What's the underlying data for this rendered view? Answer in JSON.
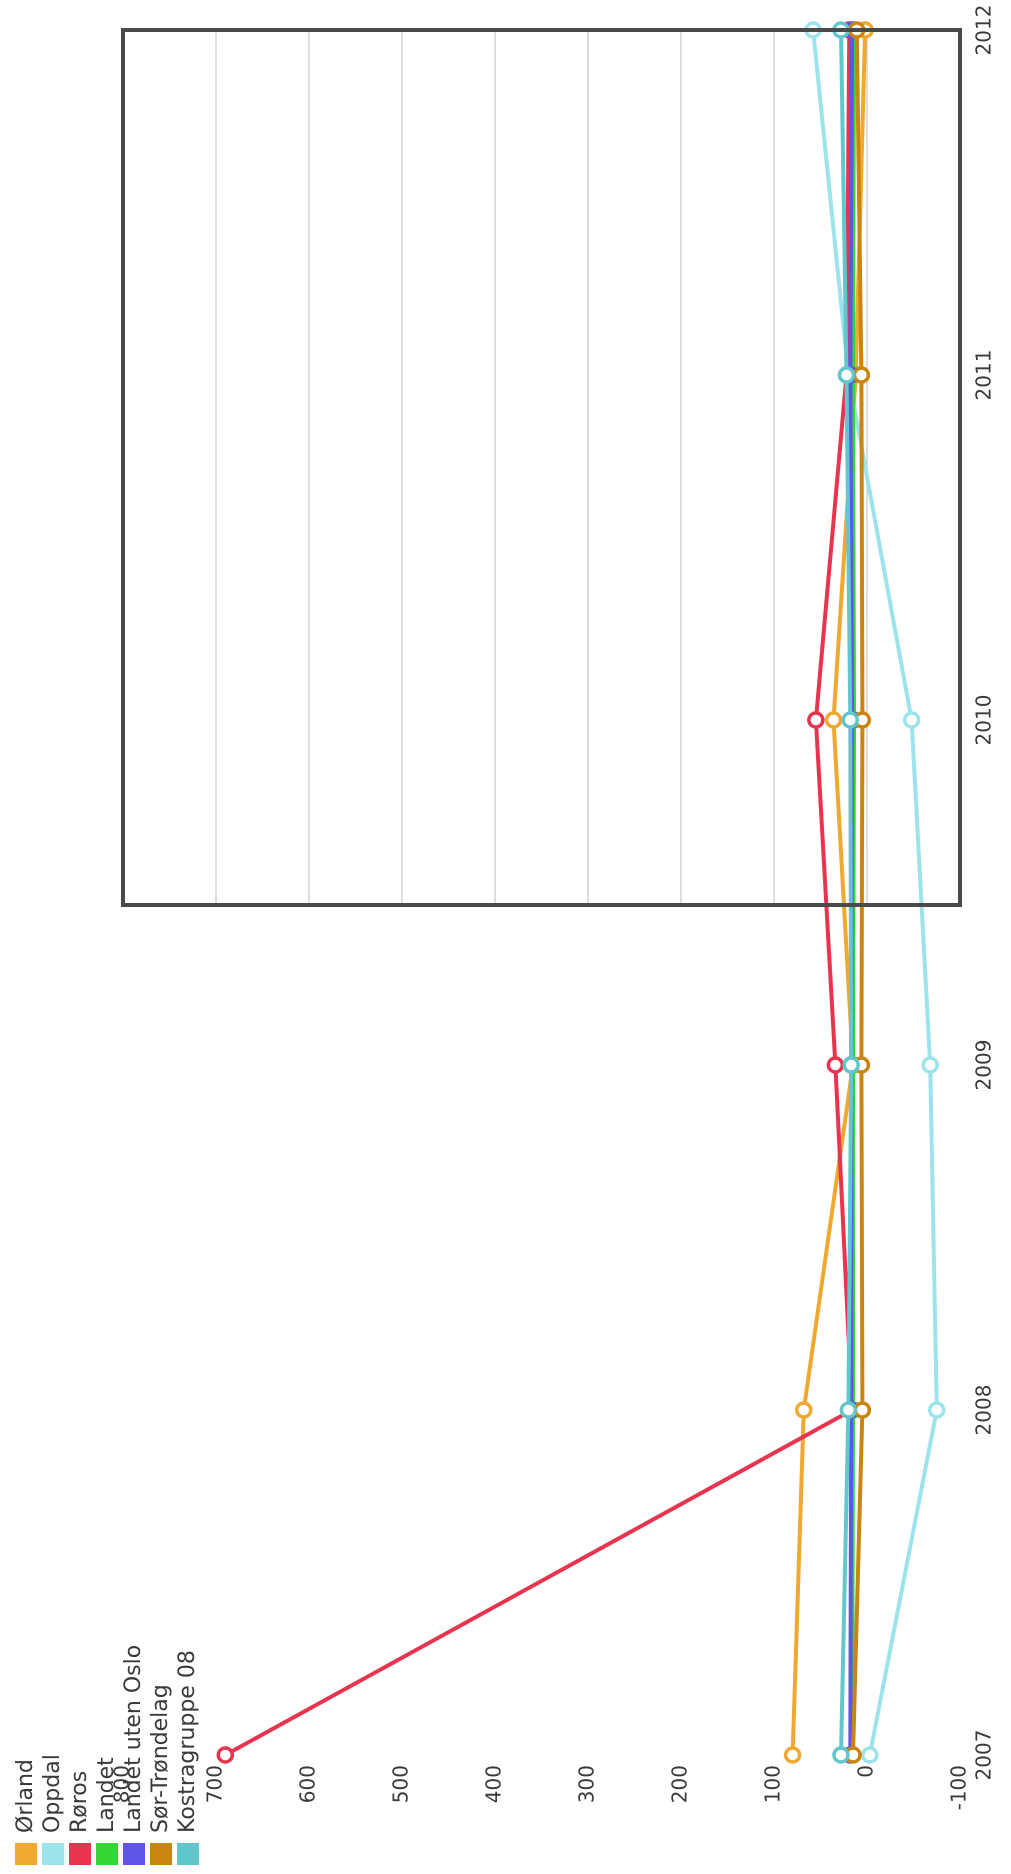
{
  "chart_data": {
    "type": "line",
    "orientation": "rotated 90 degrees counter-clockwise",
    "x": [
      "2007",
      "2008",
      "2009",
      "2010",
      "2011",
      "2012"
    ],
    "ylim": [
      -100,
      800
    ],
    "yticks": [
      "-100",
      "0",
      "100",
      "200",
      "300",
      "400",
      "500",
      "600",
      "700",
      "800"
    ],
    "grid": true,
    "legend_position": "bottom-left",
    "series": [
      {
        "name": "Ørland",
        "color": "#f0a830",
        "values": [
          80,
          68,
          15,
          36,
          12,
          2
        ]
      },
      {
        "name": "Oppdal",
        "color": "#9ce4ec",
        "values": [
          -3,
          -75,
          -68,
          -48,
          20,
          58
        ]
      },
      {
        "name": "Røros",
        "color": "#e8344e",
        "values": [
          690,
          16,
          34,
          55,
          22,
          19
        ]
      },
      {
        "name": "Landet",
        "color": "#33d633",
        "values": [
          16,
          15,
          15,
          14,
          15,
          14
        ]
      },
      {
        "name": "Landet uten Oslo",
        "color": "#5f55e8",
        "values": [
          18,
          17,
          17,
          16,
          18,
          16
        ]
      },
      {
        "name": "Sør-Trøndelag",
        "color": "#c98412",
        "values": [
          15,
          5,
          6,
          5,
          6,
          11
        ]
      },
      {
        "name": "Kostragruppe 08",
        "color": "#62c7cc",
        "values": [
          28,
          20,
          17,
          18,
          22,
          28
        ]
      }
    ]
  }
}
